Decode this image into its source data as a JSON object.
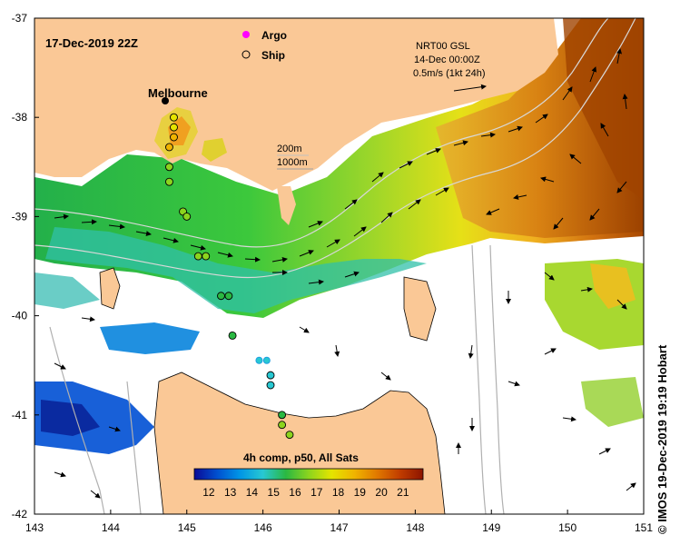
{
  "header": {
    "date_label": "17-Dec-2019 22Z",
    "city_label": "Melbourne"
  },
  "legend": {
    "argo_label": "Argo",
    "ship_label": "Ship",
    "argo_color": "#ff00ff",
    "ship_color": "#000000"
  },
  "current_info": {
    "source": "NRT00 GSL",
    "time": "14-Dec 00:00Z",
    "scale": "0.5m/s (1kt 24h)"
  },
  "contours": {
    "label_200": "200m",
    "label_1000": "1000m"
  },
  "colorbar": {
    "title": "4h comp, p50, All Sats",
    "ticks": [
      "12",
      "13",
      "14",
      "15",
      "16",
      "17",
      "18",
      "19",
      "20",
      "21"
    ],
    "colors": [
      "#0a0a96",
      "#0050d0",
      "#0096e6",
      "#28c8d2",
      "#2ab842",
      "#8cd41e",
      "#e4e400",
      "#f0b400",
      "#e07800",
      "#c03c00",
      "#8c1400"
    ]
  },
  "axes": {
    "lon_ticks": [
      "143",
      "144",
      "145",
      "146",
      "147",
      "148",
      "149",
      "150",
      "151"
    ],
    "lat_ticks": [
      "-37",
      "-38",
      "-39",
      "-40",
      "-41",
      "-42"
    ]
  },
  "ship_stations": [
    {
      "lon": 144.83,
      "lat": -38.0,
      "sst": 17.5
    },
    {
      "lon": 144.83,
      "lat": -38.1,
      "sst": 17.8
    },
    {
      "lon": 144.83,
      "lat": -38.2,
      "sst": 18.1
    },
    {
      "lon": 144.77,
      "lat": -38.3,
      "sst": 18.5
    },
    {
      "lon": 144.77,
      "lat": -38.5,
      "sst": 16.7
    },
    {
      "lon": 144.77,
      "lat": -38.65,
      "sst": 16.5
    },
    {
      "lon": 144.95,
      "lat": -38.95,
      "sst": 16.4
    },
    {
      "lon": 145.0,
      "lat": -39.0,
      "sst": 16.3
    },
    {
      "lon": 145.15,
      "lat": -39.4,
      "sst": 16.1
    },
    {
      "lon": 145.25,
      "lat": -39.4,
      "sst": 16.0
    },
    {
      "lon": 145.45,
      "lat": -39.8,
      "sst": 15.9
    },
    {
      "lon": 145.55,
      "lat": -39.8,
      "sst": 15.8
    },
    {
      "lon": 145.6,
      "lat": -40.2,
      "sst": 15.2
    },
    {
      "lon": 146.1,
      "lat": -40.6,
      "sst": 14.8
    },
    {
      "lon": 146.1,
      "lat": -40.7,
      "sst": 14.9
    },
    {
      "lon": 146.25,
      "lat": -41.0,
      "sst": 15.1
    },
    {
      "lon": 146.25,
      "lat": -41.1,
      "sst": 16.0
    },
    {
      "lon": 146.35,
      "lat": -41.2,
      "sst": 16.2
    }
  ],
  "argo_floats": [
    {
      "lon": 145.95,
      "lat": -40.45,
      "sst": 14.9
    },
    {
      "lon": 146.05,
      "lat": -40.45,
      "sst": 14.9
    }
  ],
  "copyright": "© IMOS 19-Dec-2019 19:19 Hobart"
}
